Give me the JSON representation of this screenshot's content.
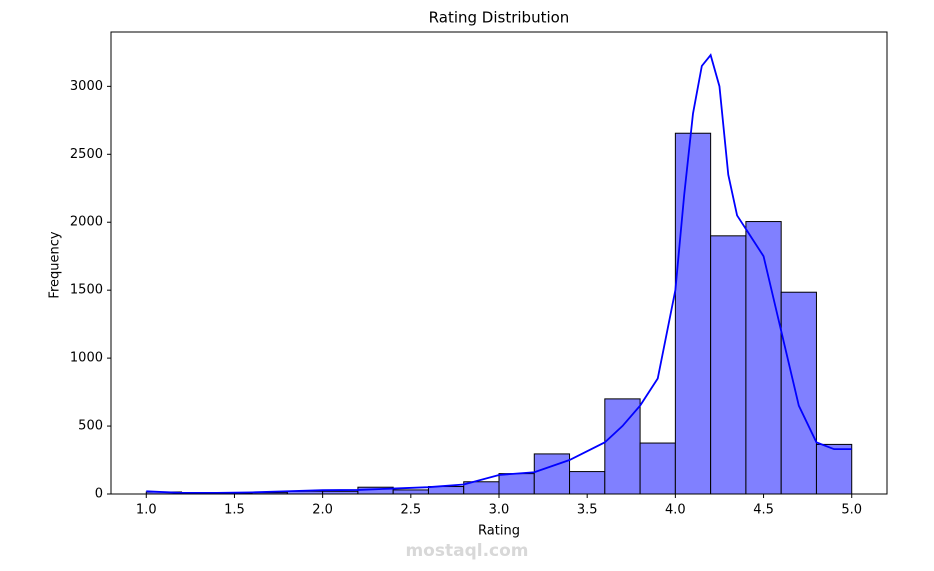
{
  "chart_data": {
    "type": "histogram",
    "title": "Rating Distribution",
    "x_label": "Rating",
    "y_label": "Frequency",
    "bins": [
      1.0,
      1.2,
      1.4,
      1.6,
      1.8,
      2.0,
      2.2,
      2.4,
      2.6,
      2.8,
      3.0,
      3.2,
      3.4,
      3.6,
      3.8,
      4.0,
      4.2,
      4.4,
      4.6,
      4.8,
      5.0
    ],
    "values": [
      15,
      3,
      5,
      10,
      20,
      20,
      50,
      30,
      55,
      90,
      150,
      295,
      165,
      700,
      375,
      2655,
      1900,
      2005,
      1485,
      365
    ],
    "color": "#8080ff",
    "edgecolor": "#000000",
    "kde": {
      "color": "#0000ff",
      "x": [
        1.0,
        1.2,
        1.4,
        1.6,
        1.8,
        2.0,
        2.2,
        2.4,
        2.6,
        2.8,
        3.0,
        3.2,
        3.4,
        3.6,
        3.7,
        3.8,
        3.9,
        4.0,
        4.05,
        4.1,
        4.15,
        4.2,
        4.25,
        4.3,
        4.35,
        4.4,
        4.5,
        4.6,
        4.7,
        4.8,
        4.9,
        5.0
      ],
      "values": [
        20,
        8,
        8,
        12,
        20,
        28,
        30,
        40,
        50,
        70,
        140,
        160,
        250,
        380,
        500,
        650,
        850,
        1500,
        2200,
        2800,
        3150,
        3230,
        3000,
        2350,
        2050,
        1950,
        1750,
        1200,
        650,
        380,
        330,
        330
      ]
    },
    "xlim": [
      0.8,
      5.2
    ],
    "xticks": [
      {
        "value": 1.0,
        "label": "1.0"
      },
      {
        "value": 1.5,
        "label": "1.5"
      },
      {
        "value": 2.0,
        "label": "2.0"
      },
      {
        "value": 2.5,
        "label": "2.5"
      },
      {
        "value": 3.0,
        "label": "3.0"
      },
      {
        "value": 3.5,
        "label": "3.5"
      },
      {
        "value": 4.0,
        "label": "4.0"
      },
      {
        "value": 4.5,
        "label": "4.5"
      },
      {
        "value": 5.0,
        "label": "5.0"
      }
    ],
    "ylim": [
      0,
      3400
    ],
    "yticks": [
      0,
      500,
      1000,
      1500,
      2000,
      2500,
      3000
    ],
    "watermark": "mostaql.com"
  }
}
